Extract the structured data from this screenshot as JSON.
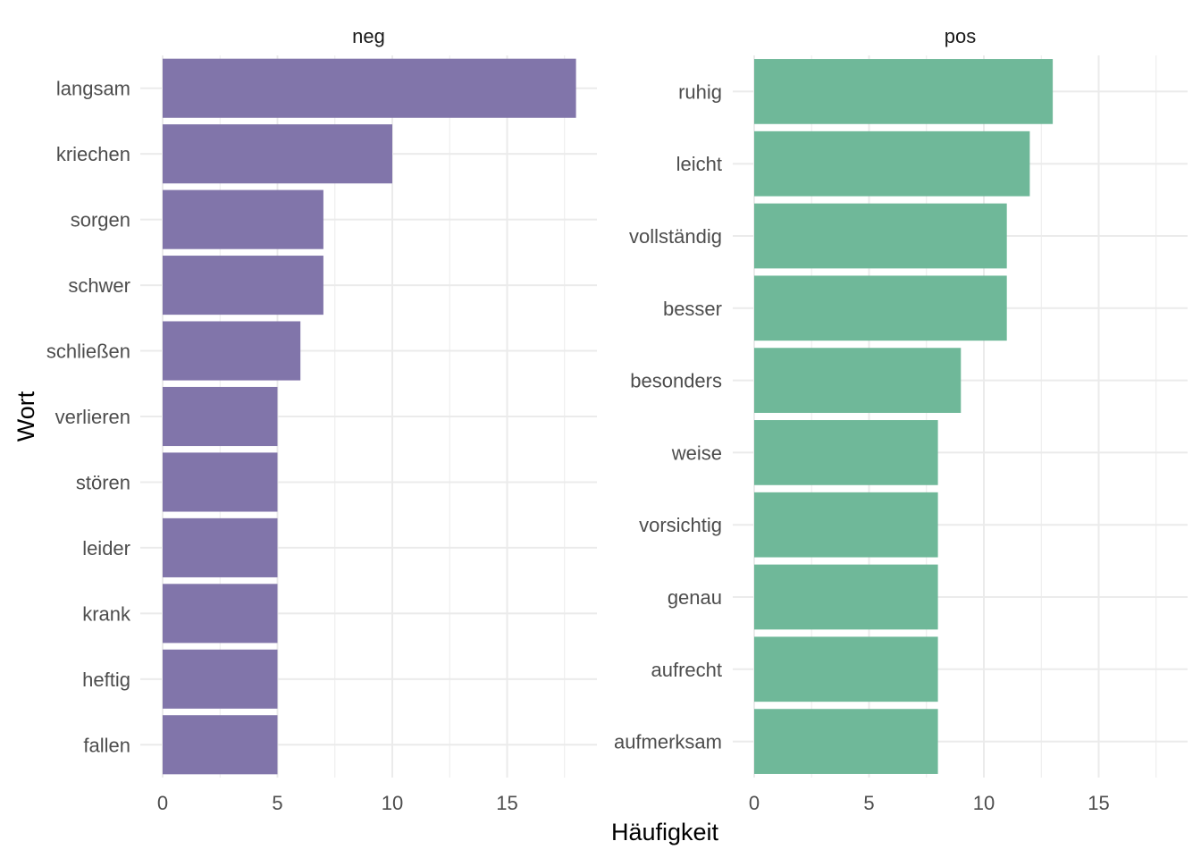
{
  "chart_data": {
    "type": "bar",
    "orientation": "horizontal",
    "layout": "facets-side-by-side",
    "xlabel": "Häufigkeit",
    "ylabel": "Wort",
    "xlim": [
      0,
      18
    ],
    "x_ticks": [
      0,
      5,
      10,
      15
    ],
    "grid": true,
    "legend": "none",
    "panels": [
      {
        "name": "neg",
        "color": "#8175AA",
        "categories": [
          "langsam",
          "kriechen",
          "sorgen",
          "schwer",
          "schließen",
          "verlieren",
          "stören",
          "leider",
          "krank",
          "heftig",
          "fallen"
        ],
        "values": [
          18,
          10,
          7,
          7,
          6,
          5,
          5,
          5,
          5,
          5,
          5
        ]
      },
      {
        "name": "pos",
        "color": "#6FB899",
        "categories": [
          "ruhig",
          "leicht",
          "vollständig",
          "besser",
          "besonders",
          "weise",
          "vorsichtig",
          "genau",
          "aufrecht",
          "aufmerksam"
        ],
        "values": [
          13,
          12,
          11,
          11,
          9,
          8,
          8,
          8,
          8,
          8
        ]
      }
    ]
  }
}
